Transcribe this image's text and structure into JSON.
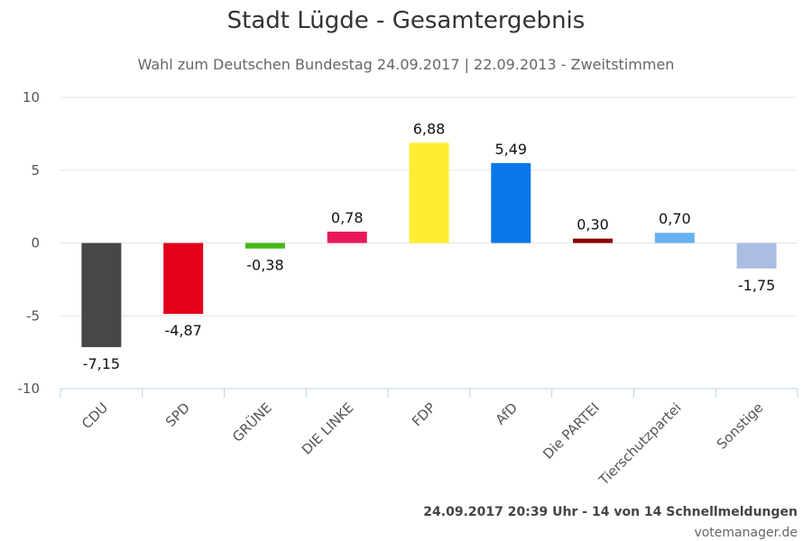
{
  "chart_data": {
    "type": "bar",
    "title": "Stadt Lügde - Gesamtergebnis",
    "subtitle": "Wahl zum Deutschen Bundestag 24.09.2017 | 22.09.2013 - Zweitstimmen",
    "categories": [
      "CDU",
      "SPD",
      "GRÜNE",
      "DIE LINKE",
      "FDP",
      "AfD",
      "Die PARTEI",
      "Tierschutzpartei",
      "Sonstige"
    ],
    "values": [
      -7.15,
      -4.87,
      -0.38,
      0.78,
      6.88,
      5.49,
      0.3,
      0.7,
      -1.75
    ],
    "value_labels": [
      "-7,15",
      "-4,87",
      "-0,38",
      "0,78",
      "6,88",
      "5,49",
      "0,30",
      "0,70",
      "-1,75"
    ],
    "colors": [
      "#474747",
      "#e2001a",
      "#46b81a",
      "#e8195a",
      "#ffed31",
      "#0a77e8",
      "#8b0000",
      "#66b2f2",
      "#aabde3"
    ],
    "ylim": [
      -10,
      10
    ],
    "yticks": [
      -10,
      -5,
      0,
      5,
      10
    ],
    "ytick_labels": [
      "-10",
      "-5",
      "0",
      "5",
      "10"
    ],
    "grid": true,
    "xlabel": "",
    "ylabel": ""
  },
  "footer": {
    "timestamp": "24.09.2017 20:39 Uhr - 14 von 14 Schnellmeldungen",
    "credit": "votemanager.de"
  }
}
